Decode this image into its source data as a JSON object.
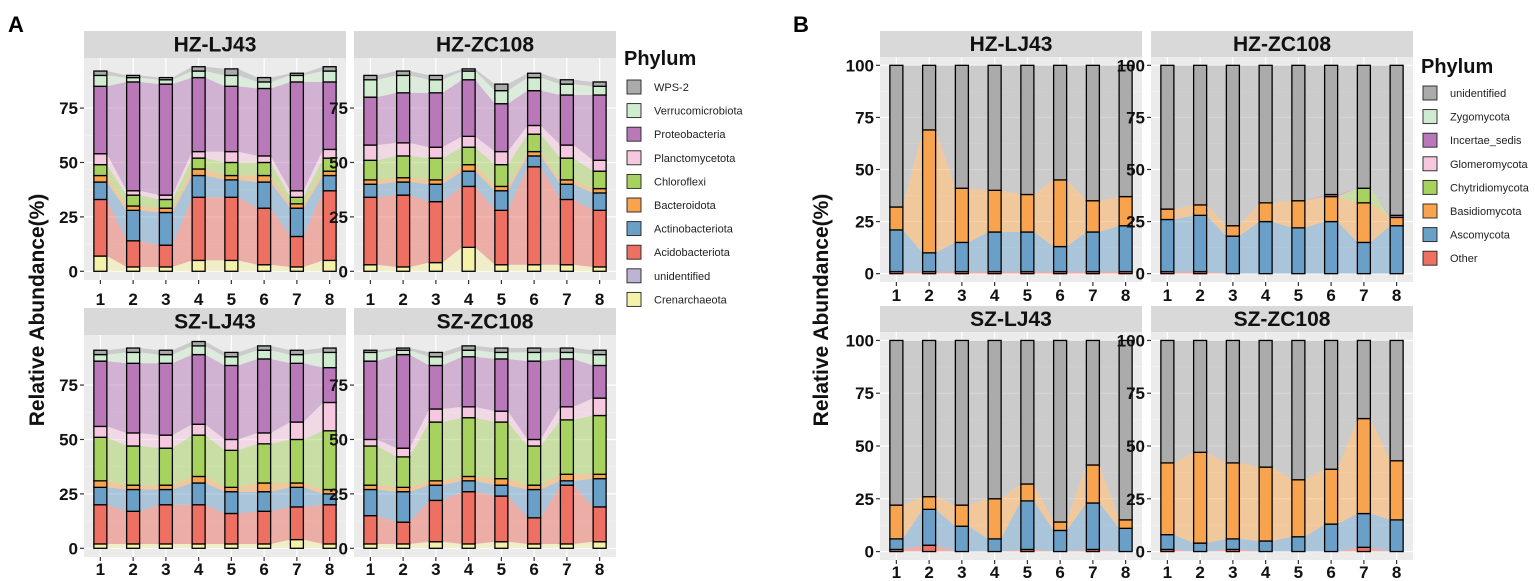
{
  "chart_data": [
    {
      "type": "stacked-bar",
      "panel_label": "A",
      "ylabel": "Relative Abundance(%)",
      "yticks": [
        0,
        25,
        50,
        75
      ],
      "ylim": [
        -4,
        98
      ],
      "categories": [
        "1",
        "2",
        "3",
        "4",
        "5",
        "6",
        "7",
        "8"
      ],
      "legend_title": "Phylum",
      "legend": [
        {
          "name": "WPS-2",
          "color": "#ABABAB"
        },
        {
          "name": "Verrucomicrobiota",
          "color": "#CFEBD0"
        },
        {
          "name": "Proteobacteria",
          "color": "#B979B9"
        },
        {
          "name": "Planctomycetota",
          "color": "#F5C8DF"
        },
        {
          "name": "Chloroflexi",
          "color": "#A8D25F"
        },
        {
          "name": "Bacteroidota",
          "color": "#F8A34E"
        },
        {
          "name": "Actinobacteriota",
          "color": "#6A9FC7"
        },
        {
          "name": "Acidobacteriota",
          "color": "#EE7063"
        },
        {
          "name": "unidentified",
          "color": "#BEB3D4"
        },
        {
          "name": "Crenarchaeota",
          "color": "#F4F2A8"
        }
      ],
      "facets": [
        {
          "title": "HZ-LJ43",
          "stack_order": [
            "Crenarchaeota",
            "unidentified",
            "Acidobacteriota",
            "Actinobacteriota",
            "Bacteroidota",
            "Chloroflexi",
            "Planctomycetota",
            "Proteobacteria",
            "Verrucomicrobiota",
            "WPS-2"
          ],
          "values": [
            [
              7,
              2,
              2,
              5,
              5,
              3,
              2,
              5
            ],
            [
              0,
              0,
              0,
              0,
              0,
              0,
              0,
              0
            ],
            [
              26,
              12,
              10,
              29,
              29,
              26,
              14,
              32
            ],
            [
              8,
              14,
              15,
              10,
              8,
              12,
              13,
              7
            ],
            [
              3,
              2,
              2,
              3,
              2,
              3,
              2,
              2
            ],
            [
              5,
              5,
              4,
              5,
              6,
              6,
              3,
              6
            ],
            [
              5,
              2,
              2,
              3,
              5,
              3,
              3,
              4
            ],
            [
              31,
              50,
              51,
              34,
              30,
              31,
              50,
              31
            ],
            [
              5,
              2,
              2,
              3,
              5,
              3,
              3,
              5
            ],
            [
              2,
              1,
              1,
              2,
              3,
              2,
              1,
              2
            ]
          ]
        },
        {
          "title": "HZ-ZC108",
          "stack_order": [
            "Crenarchaeota",
            "unidentified",
            "Acidobacteriota",
            "Actinobacteriota",
            "Bacteroidota",
            "Chloroflexi",
            "Planctomycetota",
            "Proteobacteria",
            "Verrucomicrobiota",
            "WPS-2"
          ],
          "values": [
            [
              3,
              2,
              4,
              11,
              3,
              3,
              3,
              2
            ],
            [
              0,
              0,
              0,
              0,
              0,
              0,
              0,
              0
            ],
            [
              31,
              33,
              28,
              28,
              25,
              45,
              30,
              26
            ],
            [
              6,
              6,
              8,
              7,
              9,
              5,
              7,
              8
            ],
            [
              2,
              2,
              2,
              3,
              2,
              2,
              2,
              2
            ],
            [
              9,
              10,
              10,
              8,
              10,
              8,
              10,
              8
            ],
            [
              7,
              6,
              5,
              5,
              6,
              4,
              6,
              5
            ],
            [
              22,
              23,
              25,
              26,
              22,
              16,
              23,
              30
            ],
            [
              8,
              8,
              6,
              4,
              6,
              6,
              5,
              4
            ],
            [
              2,
              2,
              2,
              1,
              3,
              2,
              2,
              2
            ]
          ]
        },
        {
          "title": "SZ-LJ43",
          "stack_order": [
            "Crenarchaeota",
            "unidentified",
            "Acidobacteriota",
            "Actinobacteriota",
            "Bacteroidota",
            "Chloroflexi",
            "Planctomycetota",
            "Proteobacteria",
            "Verrucomicrobiota",
            "WPS-2"
          ],
          "values": [
            [
              2,
              2,
              2,
              2,
              2,
              2,
              4,
              2
            ],
            [
              0,
              0,
              0,
              0,
              0,
              0,
              0,
              0
            ],
            [
              18,
              15,
              18,
              18,
              14,
              15,
              15,
              18
            ],
            [
              8,
              10,
              7,
              10,
              10,
              9,
              9,
              5
            ],
            [
              3,
              2,
              2,
              3,
              2,
              4,
              2,
              2
            ],
            [
              20,
              18,
              17,
              19,
              17,
              18,
              20,
              27
            ],
            [
              5,
              6,
              6,
              5,
              5,
              5,
              8,
              13
            ],
            [
              30,
              32,
              33,
              32,
              34,
              34,
              27,
              16
            ],
            [
              3,
              5,
              4,
              4,
              4,
              4,
              4,
              7
            ],
            [
              2,
              2,
              2,
              2,
              2,
              2,
              2,
              2
            ]
          ]
        },
        {
          "title": "SZ-ZC108",
          "stack_order": [
            "Crenarchaeota",
            "unidentified",
            "Acidobacteriota",
            "Actinobacteriota",
            "Bacteroidota",
            "Chloroflexi",
            "Planctomycetota",
            "Proteobacteria",
            "Verrucomicrobiota",
            "WPS-2"
          ],
          "values": [
            [
              2,
              2,
              3,
              2,
              3,
              2,
              2,
              3
            ],
            [
              0,
              0,
              0,
              0,
              0,
              0,
              0,
              0
            ],
            [
              13,
              10,
              19,
              24,
              21,
              12,
              27,
              16
            ],
            [
              12,
              14,
              7,
              5,
              5,
              13,
              2,
              13
            ],
            [
              2,
              2,
              2,
              2,
              3,
              2,
              3,
              2
            ],
            [
              18,
              14,
              27,
              27,
              26,
              18,
              25,
              27
            ],
            [
              3,
              4,
              6,
              5,
              5,
              3,
              6,
              8
            ],
            [
              36,
              43,
              20,
              23,
              24,
              36,
              22,
              15
            ],
            [
              4,
              2,
              4,
              3,
              3,
              4,
              3,
              5
            ],
            [
              1,
              1,
              2,
              2,
              2,
              2,
              2,
              2
            ]
          ]
        }
      ]
    },
    {
      "type": "stacked-bar",
      "panel_label": "B",
      "ylabel": "Relative Abundance(%)",
      "yticks": [
        0,
        25,
        50,
        75,
        100
      ],
      "ylim": [
        -4,
        104
      ],
      "categories": [
        "1",
        "2",
        "3",
        "4",
        "5",
        "6",
        "7",
        "8"
      ],
      "legend_title": "Phylum",
      "legend": [
        {
          "name": "unidentified",
          "color": "#ABABAB"
        },
        {
          "name": "Zygomycota",
          "color": "#CFEBD0"
        },
        {
          "name": "Incertae_sedis",
          "color": "#B979B9"
        },
        {
          "name": "Glomeromycota",
          "color": "#F5C8DF"
        },
        {
          "name": "Chytridiomycota",
          "color": "#A8D25F"
        },
        {
          "name": "Basidiomycota",
          "color": "#F8A34E"
        },
        {
          "name": "Ascomycota",
          "color": "#6A9FC7"
        },
        {
          "name": "Other",
          "color": "#EE7063"
        }
      ],
      "facets": [
        {
          "title": "HZ-LJ43",
          "stack_order": [
            "Other",
            "Ascomycota",
            "Basidiomycota",
            "Chytridiomycota",
            "Glomeromycota",
            "Incertae_sedis",
            "Zygomycota",
            "unidentified"
          ],
          "values": [
            [
              1,
              1,
              1,
              1,
              1,
              1,
              1,
              1
            ],
            [
              20,
              9,
              14,
              19,
              19,
              12,
              19,
              22
            ],
            [
              11,
              59,
              26,
              20,
              18,
              32,
              15,
              14
            ],
            [
              0,
              0,
              0,
              0,
              0,
              0,
              0,
              0
            ],
            [
              0,
              0,
              0,
              0,
              0,
              0,
              0,
              0
            ],
            [
              0,
              0,
              0,
              0,
              0,
              0,
              0,
              0
            ],
            [
              0,
              0,
              0,
              0,
              0,
              0,
              0,
              0
            ],
            [
              68,
              31,
              59,
              60,
              62,
              55,
              65,
              63
            ]
          ]
        },
        {
          "title": "HZ-ZC108",
          "stack_order": [
            "Other",
            "Ascomycota",
            "Basidiomycota",
            "Chytridiomycota",
            "Glomeromycota",
            "Incertae_sedis",
            "Zygomycota",
            "unidentified"
          ],
          "values": [
            [
              1,
              1,
              0,
              0,
              0,
              0,
              0,
              0
            ],
            [
              25,
              27,
              18,
              25,
              22,
              25,
              15,
              23
            ],
            [
              5,
              5,
              5,
              9,
              13,
              12,
              19,
              4
            ],
            [
              0,
              0,
              0,
              0,
              0,
              0,
              7,
              0
            ],
            [
              0,
              0,
              0,
              0,
              0,
              0,
              0,
              0
            ],
            [
              0,
              0,
              0,
              0,
              0,
              1,
              0,
              1
            ],
            [
              0,
              0,
              0,
              0,
              0,
              0,
              0,
              0
            ],
            [
              69,
              67,
              77,
              66,
              65,
              62,
              59,
              72
            ]
          ]
        },
        {
          "title": "SZ-LJ43",
          "stack_order": [
            "Other",
            "Ascomycota",
            "Basidiomycota",
            "Chytridiomycota",
            "Glomeromycota",
            "Incertae_sedis",
            "Zygomycota",
            "unidentified"
          ],
          "values": [
            [
              1,
              3,
              0,
              0,
              1,
              0,
              1,
              0
            ],
            [
              5,
              17,
              12,
              6,
              23,
              10,
              22,
              11
            ],
            [
              16,
              6,
              10,
              19,
              8,
              4,
              18,
              4
            ],
            [
              0,
              0,
              0,
              0,
              0,
              0,
              0,
              0
            ],
            [
              0,
              0,
              0,
              0,
              0,
              0,
              0,
              0
            ],
            [
              0,
              0,
              0,
              0,
              0,
              0,
              0,
              0
            ],
            [
              0,
              0,
              0,
              0,
              0,
              0,
              0,
              0
            ],
            [
              78,
              74,
              78,
              75,
              68,
              86,
              59,
              85
            ]
          ]
        },
        {
          "title": "SZ-ZC108",
          "stack_order": [
            "Other",
            "Ascomycota",
            "Basidiomycota",
            "Chytridiomycota",
            "Glomeromycota",
            "Incertae_sedis",
            "Zygomycota",
            "unidentified"
          ],
          "values": [
            [
              1,
              0,
              1,
              0,
              0,
              0,
              2,
              0
            ],
            [
              7,
              4,
              5,
              5,
              7,
              13,
              16,
              15
            ],
            [
              34,
              43,
              36,
              35,
              27,
              26,
              45,
              28
            ],
            [
              0,
              0,
              0,
              0,
              0,
              0,
              0,
              0
            ],
            [
              0,
              0,
              0,
              0,
              0,
              0,
              0,
              0
            ],
            [
              0,
              0,
              0,
              0,
              0,
              0,
              0,
              0
            ],
            [
              0,
              0,
              0,
              0,
              0,
              0,
              0,
              0
            ],
            [
              58,
              53,
              58,
              60,
              66,
              61,
              37,
              57
            ]
          ]
        }
      ]
    }
  ]
}
